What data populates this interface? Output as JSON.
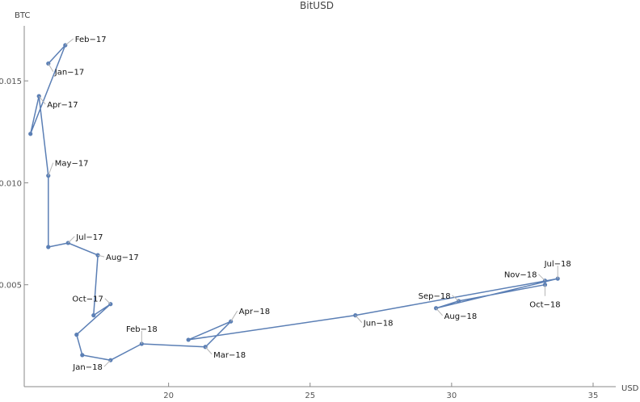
{
  "chart_data": {
    "type": "line",
    "title": "BitUSD",
    "xlabel": "USD",
    "ylabel": "BTC",
    "xlim": [
      14.9,
      35.8
    ],
    "ylim": [
      0.0,
      0.0177
    ],
    "x_ticks": [
      20,
      25,
      30,
      35
    ],
    "y_ticks": [
      0.005,
      0.01,
      0.015
    ],
    "y_tick_labels": [
      "0.005",
      "0.010",
      "0.015"
    ],
    "grid": false,
    "color": "#5b7fb5",
    "series": [
      {
        "points": [
          {
            "x": 15.75,
            "y": 0.01585,
            "label": "Jan−17"
          },
          {
            "x": 16.35,
            "y": 0.01675,
            "label": "Feb−17"
          },
          {
            "x": 15.12,
            "y": 0.0124,
            "label": ""
          },
          {
            "x": 15.42,
            "y": 0.01425,
            "label": "Apr−17"
          },
          {
            "x": 15.75,
            "y": 0.01035,
            "label": "May−17"
          },
          {
            "x": 15.75,
            "y": 0.00685,
            "label": ""
          },
          {
            "x": 16.45,
            "y": 0.00705,
            "label": "Jul−17"
          },
          {
            "x": 17.5,
            "y": 0.00645,
            "label": "Aug−17"
          },
          {
            "x": 17.35,
            "y": 0.0035,
            "label": ""
          },
          {
            "x": 17.95,
            "y": 0.00405,
            "label": "Oct−17"
          },
          {
            "x": 16.75,
            "y": 0.00255,
            "label": ""
          },
          {
            "x": 16.95,
            "y": 0.00155,
            "label": ""
          },
          {
            "x": 17.95,
            "y": 0.0013,
            "label": "Jan−18"
          },
          {
            "x": 19.05,
            "y": 0.0021,
            "label": "Feb−18"
          },
          {
            "x": 21.3,
            "y": 0.00195,
            "label": "Mar−18"
          },
          {
            "x": 22.2,
            "y": 0.0032,
            "label": "Apr−18"
          },
          {
            "x": 20.7,
            "y": 0.0023,
            "label": ""
          },
          {
            "x": 26.6,
            "y": 0.0035,
            "label": "Jun−18"
          },
          {
            "x": 33.75,
            "y": 0.0053,
            "label": "Jul−18"
          },
          {
            "x": 29.45,
            "y": 0.00385,
            "label": "Aug−18"
          },
          {
            "x": 30.25,
            "y": 0.0042,
            "label": "Sep−18"
          },
          {
            "x": 33.3,
            "y": 0.005,
            "label": "Oct−18"
          },
          {
            "x": 33.3,
            "y": 0.0052,
            "label": "Nov−18"
          }
        ]
      }
    ]
  }
}
